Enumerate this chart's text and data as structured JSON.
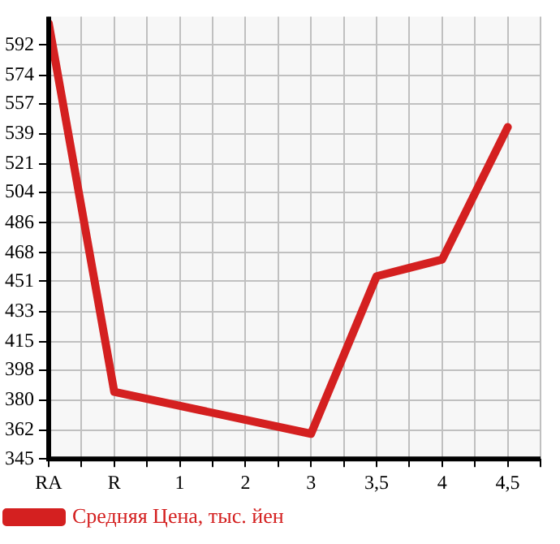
{
  "chart_data": {
    "type": "line",
    "categories": [
      "RA",
      "R",
      "1",
      "2",
      "3",
      "3,5",
      "4",
      "4,5"
    ],
    "series": [
      {
        "name": "Средняя Цена, тыс. йен",
        "color": "#d42020",
        "values": [
          605,
          385,
          null,
          null,
          360,
          454,
          464,
          543
        ]
      }
    ],
    "ylim": [
      345,
      609
    ],
    "yticks": [
      345,
      362,
      380,
      398,
      415,
      433,
      451,
      468,
      486,
      504,
      521,
      539,
      557,
      574,
      592
    ],
    "grid": true,
    "legend": "bottom",
    "marker": "none",
    "line_style": "solid"
  }
}
